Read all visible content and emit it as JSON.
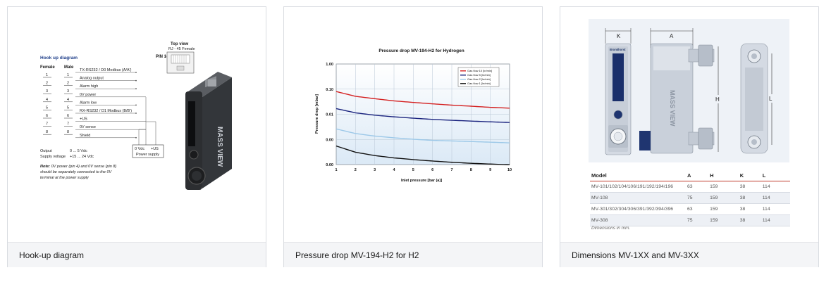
{
  "cards": [
    {
      "caption": "Hook-up diagram"
    },
    {
      "caption": "Pressure drop MV-194-H2 for H2"
    },
    {
      "caption": "Dimensions MV-1XX and MV-3XX"
    }
  ],
  "hookup": {
    "title": "Hook up diagram",
    "female_label": "Female",
    "male_label": "Male",
    "pins": [
      "1",
      "2",
      "3",
      "4",
      "5",
      "6",
      "7",
      "8"
    ],
    "signals": [
      "TX-RS232 / D0 Modbus (A/A')",
      "Analog output",
      "Alarm high",
      "0V power",
      "Alarm low",
      "RX-RS232 / D1 Modbus (B/B')",
      "+US",
      "0V sense",
      "Shield"
    ],
    "top_view": "Top view",
    "rj45": "RJ - 45 Female",
    "pin1": "PIN 1",
    "supply_0v": "0 Vdc",
    "supply_us": "+US",
    "power_supply": "Power supply",
    "output_label": "Output",
    "output_value": "0 ... 5 Vdc",
    "supply_label": "Supply voltage",
    "supply_value": "+15 ... 24 Vdc",
    "note_bold": "Note:",
    "note_lines": [
      " 0V power (pin 4) and 0V sense (pin 8)",
      "should be separately connected to the 0V",
      "terminal at the power supply"
    ],
    "device_text": "MASS VIEW"
  },
  "chart_data": {
    "type": "line",
    "title": "Pressure drop MV-194-H2 for Hydrogen",
    "xlabel": "Inlet pressure [bar (a)]",
    "ylabel": "Pressure drop [mbar]",
    "x_ticks": [
      "1",
      "2",
      "3",
      "4",
      "5",
      "6",
      "7",
      "8",
      "9",
      "10"
    ],
    "y_ticks": [
      "1.00",
      "0.10",
      "0.01",
      "0.00",
      "0.00"
    ],
    "xlim": [
      1,
      10
    ],
    "grid": true,
    "legend_position": "top-right",
    "x": [
      1,
      2,
      3,
      4,
      5,
      6,
      7,
      8,
      9,
      10
    ],
    "series": [
      {
        "name": "Gas flow 10 [ln/min]",
        "color": "#d42020",
        "values": [
          0.11,
          0.075,
          0.062,
          0.052,
          0.046,
          0.041,
          0.037,
          0.034,
          0.031,
          0.029
        ]
      },
      {
        "name": "Gas flow 5 [ln/min]",
        "color": "#1a237e",
        "values": [
          0.028,
          0.02,
          0.0165,
          0.0145,
          0.013,
          0.0118,
          0.011,
          0.0103,
          0.0097,
          0.0092
        ]
      },
      {
        "name": "Gas flow 2 [ln/min]",
        "color": "#9cc8e8",
        "values": [
          0.0055,
          0.0038,
          0.0031,
          0.0027,
          0.0024,
          0.0022,
          0.0021,
          0.002,
          0.0019,
          0.0018
        ]
      },
      {
        "name": "Gas flow 1 [ln/min]",
        "color": "#111111",
        "values": [
          0.0014,
          0.00085,
          0.00065,
          0.00054,
          0.00047,
          0.00042,
          0.00038,
          0.00035,
          0.00033,
          0.00031
        ]
      }
    ]
  },
  "dimensions": {
    "dim_k": "K",
    "dim_a": "A",
    "dim_h": "H",
    "dim_l": "L",
    "headers": [
      "Model",
      "A",
      "H",
      "K",
      "L"
    ],
    "rows": [
      [
        "MV-101/102/104/106/191/192/194/196",
        "63",
        "159",
        "38",
        "114"
      ],
      [
        "MV-108",
        "75",
        "159",
        "38",
        "114"
      ],
      [
        "MV-301/302/304/306/391/392/394/396",
        "63",
        "159",
        "38",
        "114"
      ],
      [
        "MV-308",
        "75",
        "159",
        "38",
        "114"
      ]
    ],
    "note": "Dimensions in mm.",
    "device_text": "MASS VIEW",
    "brand": "Bronkhorst"
  }
}
